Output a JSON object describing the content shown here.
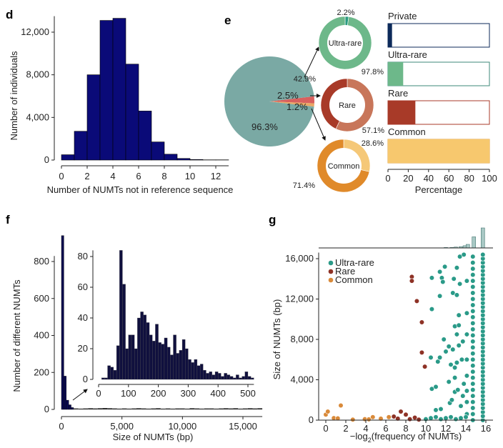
{
  "panels": {
    "d": "d",
    "e": "e",
    "f": "f",
    "g": "g"
  },
  "chart_data": [
    {
      "id": "d",
      "type": "bar",
      "xlabel": "Number of NUMTs not in reference sequence",
      "ylabel": "Number of individuals",
      "categories": [
        0,
        1,
        2,
        3,
        4,
        5,
        6,
        7,
        8,
        9,
        10,
        11,
        12
      ],
      "values": [
        500,
        2700,
        8000,
        13100,
        13300,
        9000,
        4600,
        1700,
        550,
        150,
        50,
        20,
        20
      ],
      "xticks": [
        0,
        2,
        4,
        6,
        8,
        10,
        12
      ],
      "yticks": [
        0,
        4000,
        8000,
        12000
      ],
      "ytick_labels": [
        "0",
        "4,000",
        "8,000",
        "12,000"
      ],
      "ylim": [
        0,
        13500
      ],
      "xlim": [
        0,
        13
      ],
      "color": "#0a0a78"
    },
    {
      "id": "e",
      "type": "pie",
      "main_pie": {
        "slices": [
          {
            "label": "96.3%",
            "value": 96.3,
            "color": "#7aa9a4"
          },
          {
            "label": "2.5%",
            "value": 2.5,
            "color": "#d9605e"
          },
          {
            "label": "1.2%",
            "value": 1.2,
            "color": "#eaa866"
          }
        ]
      },
      "donuts": [
        {
          "name": "Ultra-rare",
          "slices": [
            {
              "label": "2.2%",
              "value": 2.2,
              "color": "#2a9a80"
            },
            {
              "label": "97.8%",
              "value": 97.8,
              "color": "#6db88a"
            }
          ]
        },
        {
          "name": "Rare",
          "slices": [
            {
              "label": "57.1%",
              "value": 57.1,
              "color": "#c8765a"
            },
            {
              "label": "42.9%",
              "value": 42.9,
              "color": "#a83a28"
            }
          ]
        },
        {
          "name": "Common",
          "slices": [
            {
              "label": "28.6%",
              "value": 28.6,
              "color": "#f5c878"
            },
            {
              "label": "71.4%",
              "value": 71.4,
              "color": "#e08a2a"
            }
          ]
        }
      ],
      "bars": {
        "type": "bar",
        "xlabel": "Percentage",
        "xlim": [
          0,
          100
        ],
        "xticks": [
          0,
          20,
          40,
          60,
          80,
          100
        ],
        "items": [
          {
            "name": "Private",
            "value": 4,
            "color": "#0c2a5a",
            "border": "#0c2a5a"
          },
          {
            "name": "Ultra-rare",
            "value": 15,
            "color": "#6db88a",
            "border": "#3e8a78"
          },
          {
            "name": "Rare",
            "value": 27,
            "color": "#a83a28",
            "border": "#a83a28"
          },
          {
            "name": "Common",
            "value": 100,
            "color": "#f7c86e",
            "border": "#e0a040"
          }
        ]
      }
    },
    {
      "id": "f",
      "type": "bar",
      "xlabel": "Size of NUMTs (bp)",
      "ylabel": "Number of different NUMTs",
      "xlim": [
        0,
        16600
      ],
      "ylim": [
        0,
        950
      ],
      "xticks": [
        0,
        5000,
        10000,
        15000
      ],
      "xtick_labels": [
        "0",
        "5,000",
        "10,000",
        "15,000"
      ],
      "yticks": [
        0,
        200,
        400,
        600,
        800
      ],
      "head_bin_width": 200,
      "head_values": [
        940,
        180,
        50,
        25,
        10
      ],
      "tail_start": 1000,
      "tail_bin_width": 400,
      "tail_values": [
        5,
        4,
        5,
        6,
        5,
        6,
        7,
        6,
        5,
        4,
        5,
        4,
        5,
        6,
        5,
        4,
        5,
        6,
        4,
        5,
        4,
        5,
        5,
        4,
        6,
        5,
        4,
        5,
        5,
        4,
        5,
        6,
        5,
        6,
        4,
        5,
        6,
        5,
        6
      ],
      "color": "#0a0a50",
      "inset": {
        "xlim": [
          0,
          520
        ],
        "ylim": [
          0,
          88
        ],
        "xticks": [
          0,
          100,
          200,
          300,
          400,
          500
        ],
        "yticks": [
          0,
          20,
          40,
          60,
          80
        ],
        "bin_width": 10,
        "values": [
          0,
          1,
          1,
          9,
          8,
          6,
          22,
          84,
          62,
          20,
          29,
          29,
          20,
          40,
          44,
          42,
          37,
          29,
          25,
          36,
          24,
          23,
          27,
          21,
          16,
          29,
          17,
          19,
          26,
          20,
          13,
          11,
          13,
          9,
          10,
          6,
          4,
          5,
          3,
          5,
          4,
          2,
          4,
          3,
          2,
          1,
          3,
          1,
          2,
          5,
          2,
          1
        ]
      }
    },
    {
      "id": "g",
      "type": "scatter",
      "xlabel_pre": "−log",
      "xlabel_sub": "2",
      "xlabel_post": "(frequency of NUMTs)",
      "ylabel": "Size of NUMTs (bp)",
      "xlim": [
        -0.6,
        16.6
      ],
      "ylim": [
        0,
        16600
      ],
      "xticks": [
        0,
        2,
        4,
        6,
        8,
        10,
        12,
        14,
        16
      ],
      "yticks": [
        0,
        4000,
        8000,
        12000,
        16000
      ],
      "ytick_labels": [
        "0",
        "4,000",
        "8,000",
        "12,000",
        "16,000"
      ],
      "legend_position": "top-left",
      "marginal_histogram": {
        "x": [
          12,
          12.6,
          13,
          13.5,
          13.9,
          14.2,
          14.8,
          15.7
        ],
        "values": [
          1,
          1,
          2,
          3,
          5,
          8,
          25,
          45
        ],
        "color": "#a8c8c4"
      },
      "series": [
        {
          "name": "Ultra-rare",
          "color": "#2a9a88",
          "points": [
            [
              10.5,
              6200
            ],
            [
              10.6,
              3100
            ],
            [
              10.6,
              11000
            ],
            [
              10.6,
              14100
            ],
            [
              11,
              3300
            ],
            [
              11,
              1000
            ],
            [
              11.2,
              5800
            ],
            [
              11.4,
              6200
            ],
            [
              11.4,
              12300
            ],
            [
              11.4,
              14700
            ],
            [
              11.5,
              1100
            ],
            [
              11.6,
              14100
            ],
            [
              11.7,
              13700
            ],
            [
              11.8,
              8000
            ],
            [
              11.9,
              15200
            ],
            [
              12,
              6800
            ],
            [
              12.3,
              7300
            ],
            [
              12.3,
              3800
            ],
            [
              12.4,
              1700
            ],
            [
              12.5,
              5500
            ],
            [
              12.6,
              2000
            ],
            [
              12.7,
              12600
            ],
            [
              12.7,
              7000
            ],
            [
              12.8,
              14000
            ],
            [
              12.9,
              9300
            ],
            [
              12.9,
              4200
            ],
            [
              12.9,
              5200
            ],
            [
              12.9,
              2800
            ],
            [
              13.1,
              12400
            ],
            [
              13.1,
              15100
            ],
            [
              13.1,
              8500
            ],
            [
              13.1,
              5700
            ],
            [
              13.2,
              3000
            ],
            [
              13.3,
              10400
            ],
            [
              13.3,
              9400
            ],
            [
              13.3,
              7400
            ],
            [
              13.4,
              16200
            ],
            [
              13.4,
              13500
            ],
            [
              13.5,
              1400
            ],
            [
              13.6,
              6000
            ],
            [
              13.7,
              7800
            ],
            [
              13.7,
              2400
            ],
            [
              13.8,
              16400
            ],
            [
              13.8,
              3600
            ],
            [
              14.1,
              13800
            ],
            [
              14.1,
              10600
            ],
            [
              14.1,
              8500
            ],
            [
              14.1,
              6000
            ],
            [
              14.1,
              4400
            ],
            [
              14.1,
              2900
            ],
            [
              14.1,
              1800
            ],
            [
              14.1,
              600
            ],
            [
              10,
              100
            ],
            [
              10.5,
              200
            ],
            [
              11,
              300
            ],
            [
              11.5,
              100
            ],
            [
              12,
              200
            ],
            [
              12.5,
              300
            ],
            [
              13,
              100
            ],
            [
              13.5,
              200
            ],
            [
              14,
              300
            ],
            [
              14.7,
              0
            ],
            [
              14.7,
              600
            ],
            [
              14.7,
              1200
            ],
            [
              14.7,
              1800
            ],
            [
              14.7,
              2400
            ],
            [
              14.7,
              3000
            ],
            [
              14.7,
              3600
            ],
            [
              14.7,
              4200
            ],
            [
              14.7,
              4800
            ],
            [
              14.7,
              5400
            ],
            [
              14.7,
              6000
            ],
            [
              14.7,
              6600
            ],
            [
              14.7,
              7200
            ],
            [
              14.7,
              7800
            ],
            [
              14.7,
              8400
            ],
            [
              14.7,
              9000
            ],
            [
              14.7,
              9600
            ],
            [
              14.7,
              10200
            ],
            [
              14.7,
              10800
            ],
            [
              14.7,
              11400
            ],
            [
              14.7,
              12000
            ],
            [
              14.7,
              12600
            ],
            [
              14.7,
              13200
            ],
            [
              14.7,
              13800
            ],
            [
              14.7,
              14400
            ],
            [
              14.7,
              15000
            ],
            [
              14.7,
              15600
            ],
            [
              14.7,
              16200
            ],
            [
              15.7,
              0
            ],
            [
              15.7,
              400
            ],
            [
              15.7,
              800
            ],
            [
              15.7,
              1200
            ],
            [
              15.7,
              1600
            ],
            [
              15.7,
              2000
            ],
            [
              15.7,
              2400
            ],
            [
              15.7,
              2800
            ],
            [
              15.7,
              3200
            ],
            [
              15.7,
              3600
            ],
            [
              15.7,
              4000
            ],
            [
              15.7,
              4400
            ],
            [
              15.7,
              4800
            ],
            [
              15.7,
              5200
            ],
            [
              15.7,
              5600
            ],
            [
              15.7,
              6000
            ],
            [
              15.7,
              6400
            ],
            [
              15.7,
              6800
            ],
            [
              15.7,
              7200
            ],
            [
              15.7,
              7600
            ],
            [
              15.7,
              8000
            ],
            [
              15.7,
              8400
            ],
            [
              15.7,
              8800
            ],
            [
              15.7,
              9200
            ],
            [
              15.7,
              9600
            ],
            [
              15.7,
              10000
            ],
            [
              15.7,
              10400
            ],
            [
              15.7,
              10800
            ],
            [
              15.7,
              11200
            ],
            [
              15.7,
              11600
            ],
            [
              15.7,
              12000
            ],
            [
              15.7,
              12400
            ],
            [
              15.7,
              12800
            ],
            [
              15.7,
              13200
            ],
            [
              15.7,
              13600
            ],
            [
              15.7,
              14000
            ],
            [
              15.7,
              14400
            ],
            [
              15.7,
              14800
            ],
            [
              15.7,
              15200
            ],
            [
              15.7,
              15600
            ],
            [
              15.7,
              16000
            ],
            [
              15.7,
              16400
            ]
          ]
        },
        {
          "name": "Rare",
          "color": "#8e3226",
          "points": [
            [
              6.8,
              350
            ],
            [
              7.5,
              850
            ],
            [
              8,
              550
            ],
            [
              8.6,
              14200
            ],
            [
              8.6,
              13800
            ],
            [
              9.1,
              11800
            ],
            [
              9.6,
              9700
            ],
            [
              9.6,
              6700
            ],
            [
              9.9,
              5300
            ],
            [
              7.2,
              150
            ],
            [
              8.4,
              100
            ],
            [
              8.9,
              250
            ],
            [
              9.3,
              50
            ]
          ]
        },
        {
          "name": "Common",
          "color": "#d98a3a",
          "points": [
            [
              0,
              550
            ],
            [
              0.2,
              850
            ],
            [
              0.8,
              200
            ],
            [
              1.2,
              180
            ],
            [
              1.5,
              1450
            ],
            [
              2.7,
              50
            ],
            [
              3.9,
              100
            ],
            [
              4.3,
              80
            ],
            [
              4.7,
              300
            ],
            [
              5.5,
              150
            ],
            [
              6.3,
              300
            ]
          ]
        }
      ]
    }
  ]
}
